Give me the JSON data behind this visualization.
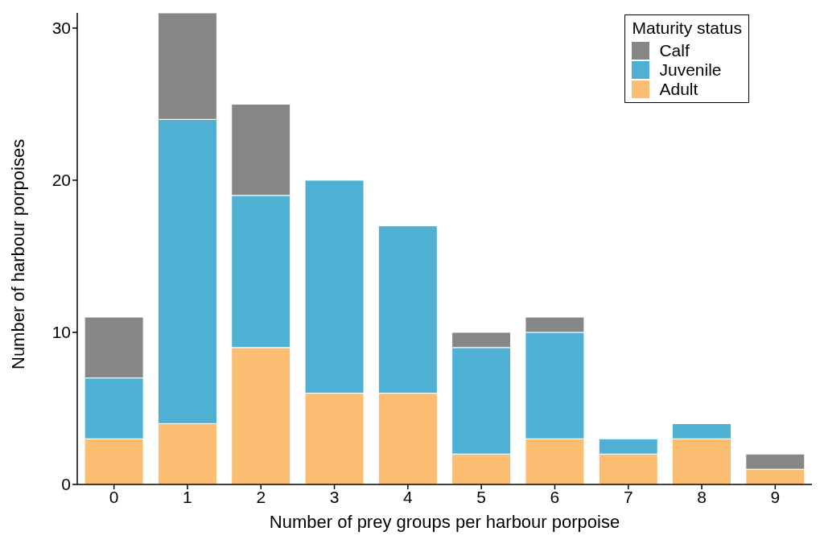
{
  "chart_data": {
    "type": "bar",
    "stacked": true,
    "xlabel": "Number of prey groups per harbour porpoise",
    "ylabel": "Number of harbour porpoises",
    "legend_title": "Maturity status",
    "legend": "top right",
    "grid": false,
    "categories": [
      "0",
      "1",
      "2",
      "3",
      "4",
      "5",
      "6",
      "7",
      "8",
      "9"
    ],
    "ylim": [
      0,
      31
    ],
    "yticks": [
      0,
      10,
      20,
      30
    ],
    "series": [
      {
        "name": "Adult",
        "color": "#fbbd72",
        "values": [
          3,
          4,
          9,
          6,
          6,
          2,
          3,
          2,
          3,
          1
        ]
      },
      {
        "name": "Juvenile",
        "color": "#4eb1d3",
        "values": [
          4,
          20,
          10,
          14,
          11,
          7,
          7,
          1,
          1,
          0
        ]
      },
      {
        "name": "Calf",
        "color": "#878787",
        "values": [
          4,
          7,
          6,
          0,
          0,
          1,
          1,
          0,
          0,
          1
        ]
      }
    ]
  }
}
